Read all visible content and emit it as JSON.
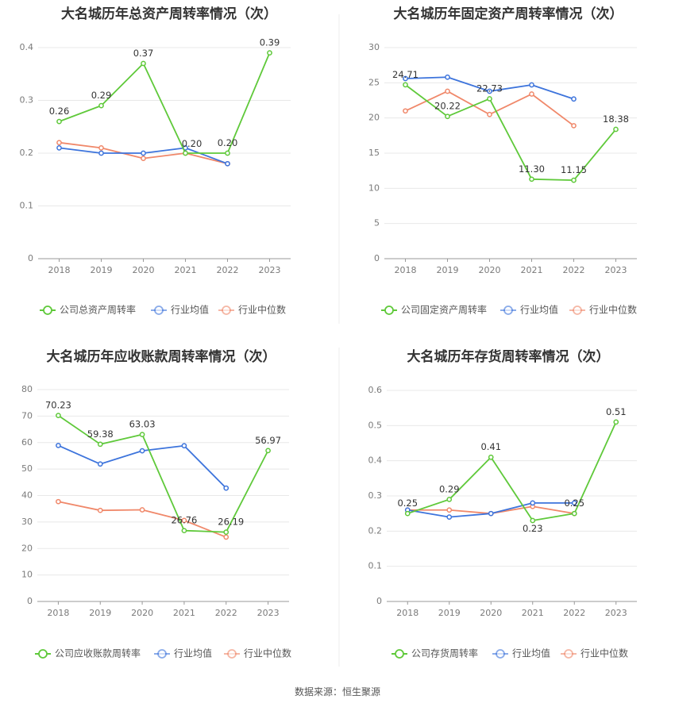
{
  "source_text": "数据来源：恒生聚源",
  "colors": {
    "company": "#5fc93a",
    "avg": "#3d74dc",
    "median": "#f0886a",
    "grid": "#e8e8e8",
    "axis": "#999999"
  },
  "chart_data": [
    {
      "type": "line",
      "title": "大名城历年总资产周转率情况（次）",
      "categories": [
        "2018",
        "2019",
        "2020",
        "2021",
        "2022",
        "2023"
      ],
      "ylim": [
        0,
        0.4
      ],
      "yticks": [
        "0",
        "0.1",
        "0.2",
        "0.3",
        "0.4"
      ],
      "grid": true,
      "legend": "bottom",
      "series": [
        {
          "name": "公司总资产周转率",
          "values": [
            0.26,
            0.29,
            0.37,
            0.2,
            0.2,
            0.39
          ],
          "labels": [
            "0.26",
            "0.29",
            "0.37",
            "0.20",
            "0.20",
            "0.39"
          ]
        },
        {
          "name": "行业均值",
          "values": [
            0.21,
            0.2,
            0.2,
            0.21,
            0.18,
            null
          ]
        },
        {
          "name": "行业中位数",
          "values": [
            0.22,
            0.21,
            0.19,
            0.2,
            0.18,
            null
          ]
        }
      ]
    },
    {
      "type": "line",
      "title": "大名城历年固定资产周转率情况（次）",
      "categories": [
        "2018",
        "2019",
        "2020",
        "2021",
        "2022",
        "2023"
      ],
      "ylim": [
        0,
        30
      ],
      "yticks": [
        "0",
        "5",
        "10",
        "15",
        "20",
        "25",
        "30"
      ],
      "grid": true,
      "legend": "bottom",
      "series": [
        {
          "name": "公司固定资产周转率",
          "values": [
            24.71,
            20.22,
            22.73,
            11.3,
            11.15,
            18.38
          ],
          "labels": [
            "24.71",
            "20.22",
            "22.73",
            "11.30",
            "11.15",
            "18.38"
          ]
        },
        {
          "name": "行业均值",
          "values": [
            25.6,
            25.8,
            23.8,
            24.7,
            22.7,
            null
          ]
        },
        {
          "name": "行业中位数",
          "values": [
            21.0,
            23.8,
            20.5,
            23.4,
            18.9,
            null
          ]
        }
      ]
    },
    {
      "type": "line",
      "title": "大名城历年应收账款周转率情况（次）",
      "categories": [
        "2018",
        "2019",
        "2020",
        "2021",
        "2022",
        "2023"
      ],
      "ylim": [
        0,
        80
      ],
      "yticks": [
        "0",
        "10",
        "20",
        "30",
        "40",
        "50",
        "60",
        "70",
        "80"
      ],
      "grid": true,
      "legend": "bottom",
      "series": [
        {
          "name": "公司应收账款周转率",
          "values": [
            70.23,
            59.38,
            63.03,
            26.76,
            26.19,
            56.97
          ],
          "labels": [
            "70.23",
            "59.38",
            "63.03",
            "26.76",
            "26.19",
            "56.97"
          ]
        },
        {
          "name": "行业均值",
          "values": [
            58.9,
            51.9,
            56.9,
            58.8,
            42.8,
            null
          ]
        },
        {
          "name": "行业中位数",
          "values": [
            37.7,
            34.4,
            34.6,
            30.6,
            24.3,
            null
          ]
        }
      ]
    },
    {
      "type": "line",
      "title": "大名城历年存货周转率情况（次）",
      "categories": [
        "2018",
        "2019",
        "2020",
        "2021",
        "2022",
        "2023"
      ],
      "ylim": [
        0,
        0.6
      ],
      "yticks": [
        "0",
        "0.1",
        "0.2",
        "0.3",
        "0.4",
        "0.5",
        "0.6"
      ],
      "grid": true,
      "legend": "bottom",
      "series": [
        {
          "name": "公司存货周转率",
          "values": [
            0.25,
            0.29,
            0.41,
            0.23,
            0.25,
            0.51
          ],
          "labels": [
            "0.25",
            "0.29",
            "0.41",
            "0.23",
            "0.25",
            "0.51"
          ]
        },
        {
          "name": "行业均值",
          "values": [
            0.26,
            0.24,
            0.25,
            0.28,
            0.28,
            null
          ]
        },
        {
          "name": "行业中位数",
          "values": [
            0.26,
            0.26,
            0.25,
            0.27,
            0.25,
            null
          ]
        }
      ]
    }
  ]
}
